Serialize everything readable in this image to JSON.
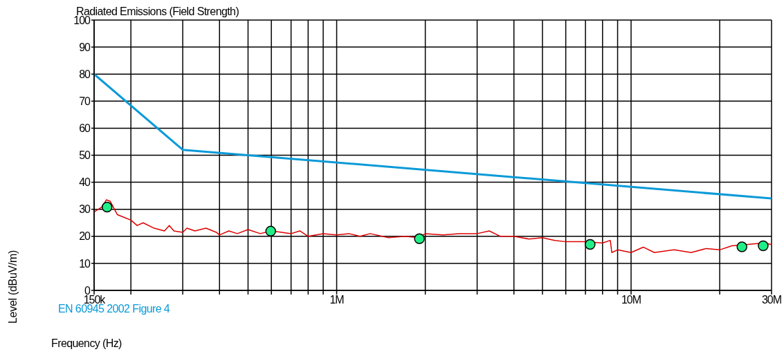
{
  "chart_data": {
    "type": "line",
    "title": "Radiated Emissions (Field Strength)",
    "xlabel": "Frequency (Hz)",
    "ylabel": "Level (dBuV/m)",
    "log": "x",
    "grid": true,
    "legend": "bottom left",
    "line_style": "solid",
    "xlim": [
      150000,
      30000000
    ],
    "xticks": [
      {
        "value": 150000,
        "label": "150k"
      },
      {
        "value": 200000,
        "label": null
      },
      {
        "value": 300000,
        "label": null
      },
      {
        "value": 400000,
        "label": null
      },
      {
        "value": 500000,
        "label": null
      },
      {
        "value": 600000,
        "label": null
      },
      {
        "value": 700000,
        "label": null
      },
      {
        "value": 800000,
        "label": null
      },
      {
        "value": 900000,
        "label": null
      },
      {
        "value": 1000000,
        "label": "1M"
      },
      {
        "value": 2000000,
        "label": null
      },
      {
        "value": 3000000,
        "label": null
      },
      {
        "value": 4000000,
        "label": null
      },
      {
        "value": 5000000,
        "label": null
      },
      {
        "value": 6000000,
        "label": null
      },
      {
        "value": 7000000,
        "label": null
      },
      {
        "value": 8000000,
        "label": null
      },
      {
        "value": 9000000,
        "label": null
      },
      {
        "value": 10000000,
        "label": "10M"
      },
      {
        "value": 20000000,
        "label": null
      },
      {
        "value": 30000000,
        "label": "30M"
      }
    ],
    "ylim": [
      0,
      100
    ],
    "yticks": [
      0,
      10,
      20,
      30,
      40,
      50,
      60,
      70,
      80,
      90,
      100
    ],
    "series": [
      {
        "name": "EN 60945 2002 Figure 4",
        "color": "#0a9ad8",
        "marker": "none",
        "x": [
          150000,
          300000,
          30000000
        ],
        "values": [
          80,
          52,
          34
        ]
      },
      {
        "color": "#dd0000",
        "marker": "none",
        "x": [
          150000,
          160000,
          165000,
          170000,
          180000,
          190000,
          200000,
          210000,
          220000,
          240000,
          260000,
          270000,
          280000,
          300000,
          310000,
          330000,
          360000,
          390000,
          400000,
          430000,
          460000,
          500000,
          550000,
          600000,
          650000,
          700000,
          750000,
          800000,
          900000,
          1000000,
          1100000,
          1200000,
          1300000,
          1500000,
          1700000,
          1900000,
          2000000,
          2300000,
          2600000,
          3000000,
          3300000,
          3600000,
          4000000,
          4500000,
          5000000,
          5500000,
          6000000,
          7000000,
          8000000,
          8500000,
          8600000,
          9000000,
          10000000,
          11000000,
          12000000,
          14000000,
          16000000,
          18000000,
          20000000,
          22000000,
          25000000,
          28000000,
          30000000
        ],
        "values": [
          29,
          31,
          33.5,
          33,
          28,
          27,
          26,
          24,
          25,
          23,
          22,
          24,
          22,
          21.5,
          23,
          22,
          23,
          21.5,
          20.5,
          22,
          21,
          22.5,
          21,
          22,
          21.5,
          21,
          22,
          20,
          21,
          20.5,
          21,
          20,
          21,
          19.5,
          20,
          19.5,
          21,
          20.5,
          21,
          21,
          22,
          20,
          20,
          19,
          19.5,
          18.5,
          18,
          18,
          17.5,
          18.5,
          14,
          15,
          14,
          16,
          14,
          15,
          14,
          15.5,
          15,
          16.5,
          17,
          17.5,
          17
        ]
      },
      {
        "type": "scatter",
        "color": "#22ee88",
        "marker": "circle",
        "x": [
          166000,
          597000,
          1910000,
          7260000,
          23800000,
          28100000
        ],
        "values": [
          30.8,
          21.9,
          19.1,
          17,
          16.1,
          16.5
        ]
      }
    ]
  }
}
